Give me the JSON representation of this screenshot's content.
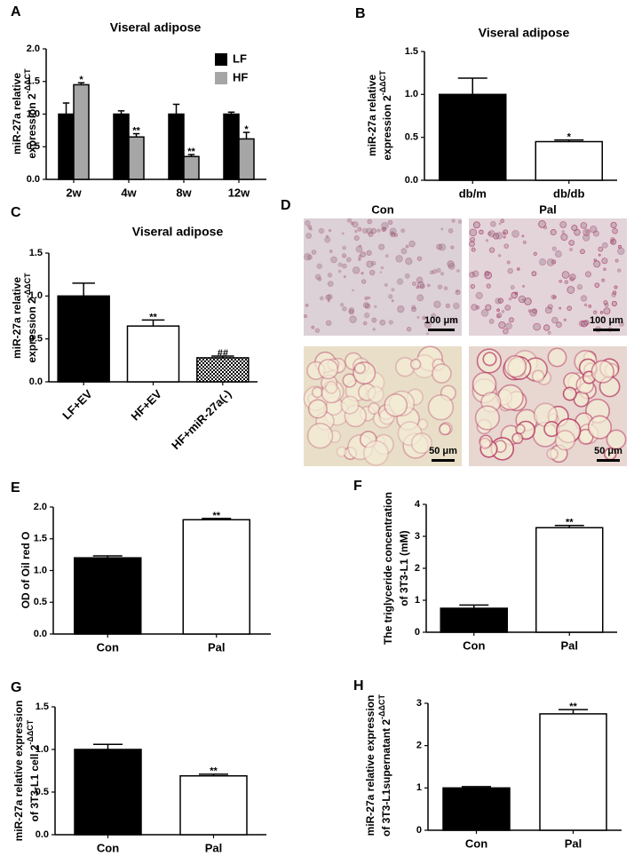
{
  "chart_data": [
    {
      "type": "bar",
      "panel": "A",
      "title": "Viseral adipose",
      "ylabel": [
        "miR-27a relative",
        "expression 2"
      ],
      "ylabel_sup": "-ΔΔCT",
      "categories": [
        "2w",
        "4w",
        "8w",
        "12w"
      ],
      "series": [
        {
          "name": "LF",
          "color": "#000000",
          "values": [
            1.0,
            1.0,
            1.0,
            1.0
          ],
          "errors": [
            0.17,
            0.05,
            0.15,
            0.03
          ]
        },
        {
          "name": "HF",
          "color": "#a6a6a6",
          "values": [
            1.45,
            0.65,
            0.35,
            0.62
          ],
          "errors": [
            0.03,
            0.05,
            0.03,
            0.1
          ],
          "annotations": [
            "*",
            "**",
            "**",
            "*"
          ]
        }
      ],
      "ylim": [
        0,
        2
      ],
      "yticks": [
        {
          "value": 0,
          "label": "0.0"
        },
        0.5,
        {
          "value": 1,
          "label": "1.0"
        },
        1.5,
        {
          "value": 2,
          "label": "2.0"
        }
      ],
      "legend": "upper right"
    },
    {
      "type": "bar",
      "panel": "B",
      "title": "Viseral adipose",
      "ylabel": [
        "miR-27a relative",
        "expression 2"
      ],
      "ylabel_sup": "-ΔΔCT",
      "categories": [
        "db/m",
        "db/db"
      ],
      "series": [
        {
          "values": [
            1.0,
            0.45
          ],
          "errors": [
            0.19,
            0.02
          ],
          "colors": [
            "#000000",
            "#ffffff"
          ],
          "annotations": [
            null,
            "*"
          ]
        }
      ],
      "ylim": [
        0,
        1.5
      ],
      "yticks": [
        {
          "value": 0,
          "label": "0.0"
        },
        0.5,
        {
          "value": 1,
          "label": "1.0"
        },
        1.5
      ]
    },
    {
      "type": "bar",
      "panel": "C",
      "title": "Viseral adipose",
      "ylabel": [
        "miR-27a relative",
        "expression 2"
      ],
      "ylabel_sup": "-ΔΔCT",
      "categories": [
        "LF+EV",
        "HF+EV",
        "HF+miR-27a(-)"
      ],
      "series": [
        {
          "values": [
            1.0,
            0.65,
            0.28
          ],
          "errors": [
            0.15,
            0.07,
            0.02
          ],
          "colors": [
            "#000000",
            "#ffffff",
            "checker"
          ],
          "annotations": [
            null,
            "**",
            "##"
          ]
        }
      ],
      "ylim": [
        0,
        1.5
      ],
      "yticks": [
        {
          "value": 0,
          "label": "0.0"
        },
        0.5,
        {
          "value": 1,
          "label": "1.0"
        },
        1.5
      ]
    },
    {
      "type": "bar",
      "panel": "E",
      "ylabel": [
        "OD of Oil red O"
      ],
      "categories": [
        "Con",
        "Pal"
      ],
      "series": [
        {
          "values": [
            1.2,
            1.8
          ],
          "errors": [
            0.03,
            0.02
          ],
          "colors": [
            "#000000",
            "#ffffff"
          ],
          "annotations": [
            null,
            "**"
          ]
        }
      ],
      "ylim": [
        0,
        2
      ],
      "yticks": [
        {
          "value": 0,
          "label": "0.0"
        },
        0.5,
        {
          "value": 1,
          "label": "1.0"
        },
        1.5,
        {
          "value": 2,
          "label": "2.0"
        }
      ]
    },
    {
      "type": "bar",
      "panel": "F",
      "ylabel": [
        "The triglyceride concentration",
        "of 3T3-L1 (mM)"
      ],
      "categories": [
        "Con",
        "Pal"
      ],
      "series": [
        {
          "values": [
            0.75,
            3.27
          ],
          "errors": [
            0.1,
            0.07
          ],
          "colors": [
            "#000000",
            "#ffffff"
          ],
          "annotations": [
            null,
            "**"
          ]
        }
      ],
      "ylim": [
        0,
        4
      ],
      "yticks": [
        0,
        1,
        2,
        3,
        4
      ]
    },
    {
      "type": "bar",
      "panel": "G",
      "ylabel": [
        "miR-27a relative expression",
        "of 3T3-L1 cell 2"
      ],
      "ylabel_sup": "-ΔΔCT",
      "categories": [
        "Con",
        "Pal"
      ],
      "series": [
        {
          "values": [
            1.0,
            0.69
          ],
          "errors": [
            0.06,
            0.02
          ],
          "colors": [
            "#000000",
            "#ffffff"
          ],
          "annotations": [
            null,
            "**"
          ]
        }
      ],
      "ylim": [
        0,
        1.5
      ],
      "yticks": [
        {
          "value": 0,
          "label": "0.0"
        },
        0.5,
        {
          "value": 1,
          "label": "1.0"
        },
        1.5
      ]
    },
    {
      "type": "bar",
      "panel": "H",
      "ylabel": [
        "miR-27a relative expression",
        "of 3T3-L1supernatant 2"
      ],
      "ylabel_sup": "-ΔΔCT",
      "categories": [
        "Con",
        "Pal"
      ],
      "series": [
        {
          "values": [
            1.0,
            2.75
          ],
          "errors": [
            0.03,
            0.1
          ],
          "colors": [
            "#000000",
            "#ffffff"
          ],
          "annotations": [
            null,
            "**"
          ]
        }
      ],
      "ylim": [
        0,
        3
      ],
      "yticks": [
        0,
        1,
        2,
        3
      ]
    }
  ],
  "micrographs": {
    "panel": "D",
    "columns": [
      "Con",
      "Pal"
    ],
    "scale_bars": [
      "100 μm",
      "100 μm",
      "50 μm",
      "50 μm"
    ]
  }
}
